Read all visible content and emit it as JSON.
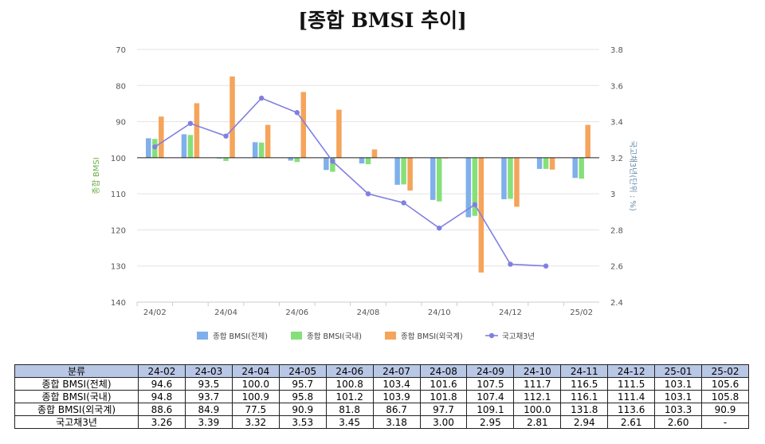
{
  "title": "[종합 BMSI 추이]",
  "chart_data": {
    "type": "bar+line",
    "categories": [
      "24-02",
      "24-03",
      "24-04",
      "24-05",
      "24-06",
      "24-07",
      "24-08",
      "24-09",
      "24-10",
      "24-11",
      "24-12",
      "25-01",
      "25-02"
    ],
    "x_tick_labels": [
      "24/02",
      "24/04",
      "24/06",
      "24/08",
      "24/10",
      "24/12",
      "25/02"
    ],
    "series": [
      {
        "name": "종합 BMSI(전체)",
        "axis": "left",
        "type": "bar",
        "color": "#7fb0ea",
        "values": [
          94.6,
          93.5,
          100.0,
          95.7,
          100.8,
          103.4,
          101.6,
          107.5,
          111.7,
          116.5,
          111.5,
          103.1,
          105.6
        ]
      },
      {
        "name": "종합 BMSI(국내)",
        "axis": "left",
        "type": "bar",
        "color": "#86e07a",
        "values": [
          94.8,
          93.7,
          100.9,
          95.8,
          101.2,
          103.9,
          101.8,
          107.4,
          112.1,
          116.1,
          111.4,
          103.1,
          105.8
        ]
      },
      {
        "name": "종합 BMSI(외국계)",
        "axis": "left",
        "type": "bar",
        "color": "#f5a45b",
        "values": [
          88.6,
          84.9,
          77.5,
          90.9,
          81.8,
          86.7,
          97.7,
          109.1,
          100.0,
          131.8,
          113.6,
          103.3,
          90.9
        ]
      },
      {
        "name": "국고채3년",
        "axis": "right",
        "type": "line",
        "color": "#8080e0",
        "values": [
          3.26,
          3.39,
          3.32,
          3.53,
          3.45,
          3.18,
          3.0,
          2.95,
          2.81,
          2.94,
          2.61,
          2.6,
          null
        ]
      }
    ],
    "left_axis": {
      "label": "종합 BMSI",
      "min": 70,
      "max": 140,
      "reversed": true,
      "ticks": [
        70,
        80,
        90,
        100,
        110,
        120,
        130,
        140
      ]
    },
    "right_axis": {
      "label": "국고채3년(단위 : %)",
      "min": 2.4,
      "max": 3.8,
      "ticks": [
        "3.8",
        "3.6",
        "3.4",
        "3.2",
        "3",
        "2.8",
        "2.6",
        "2.4"
      ]
    },
    "baseline": 100,
    "legend_position": "bottom"
  },
  "table": {
    "header_label": "분류",
    "columns": [
      "24-02",
      "24-03",
      "24-04",
      "24-05",
      "24-06",
      "24-07",
      "24-08",
      "24-09",
      "24-10",
      "24-11",
      "24-12",
      "25-01",
      "25-02"
    ],
    "rows": [
      {
        "label": "종합 BMSI(전체)",
        "values": [
          "94.6",
          "93.5",
          "100.0",
          "95.7",
          "100.8",
          "103.4",
          "101.6",
          "107.5",
          "111.7",
          "116.5",
          "111.5",
          "103.1",
          "105.6"
        ]
      },
      {
        "label": "종합 BMSI(국내)",
        "values": [
          "94.8",
          "93.7",
          "100.9",
          "95.8",
          "101.2",
          "103.9",
          "101.8",
          "107.4",
          "112.1",
          "116.1",
          "111.4",
          "103.1",
          "105.8"
        ]
      },
      {
        "label": "종합 BMSI(외국계)",
        "values": [
          "88.6",
          "84.9",
          "77.5",
          "90.9",
          "81.8",
          "86.7",
          "97.7",
          "109.1",
          "100.0",
          "131.8",
          "113.6",
          "103.3",
          "90.9"
        ]
      },
      {
        "label": "국고채3년",
        "values": [
          "3.26",
          "3.39",
          "3.32",
          "3.53",
          "3.45",
          "3.18",
          "3.00",
          "2.95",
          "2.81",
          "2.94",
          "2.61",
          "2.60",
          "-"
        ]
      }
    ]
  }
}
